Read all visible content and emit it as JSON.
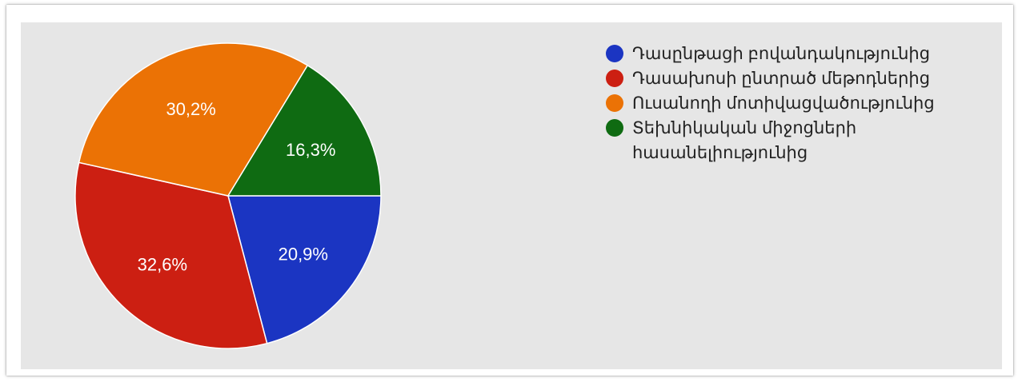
{
  "chart_data": {
    "type": "pie",
    "slices": [
      {
        "label": "Դասընթացի բովանդակությունից",
        "value": 20.9,
        "value_label": "20,9%",
        "color": "#1b35c2"
      },
      {
        "label": "Դասախոսի ընտրած մեթոդներից",
        "value": 32.6,
        "value_label": "32,6%",
        "color": "#cc1f12"
      },
      {
        "label": "Ուսանողի մոտիվացվածությունից",
        "value": 30.2,
        "value_label": "30,2%",
        "color": "#eb7205"
      },
      {
        "label": "Տեխնիկական միջոցների հասանելիությունից",
        "value": 16.3,
        "value_label": "16,3%",
        "color": "#0f6b12"
      }
    ],
    "legend_position": "right"
  }
}
